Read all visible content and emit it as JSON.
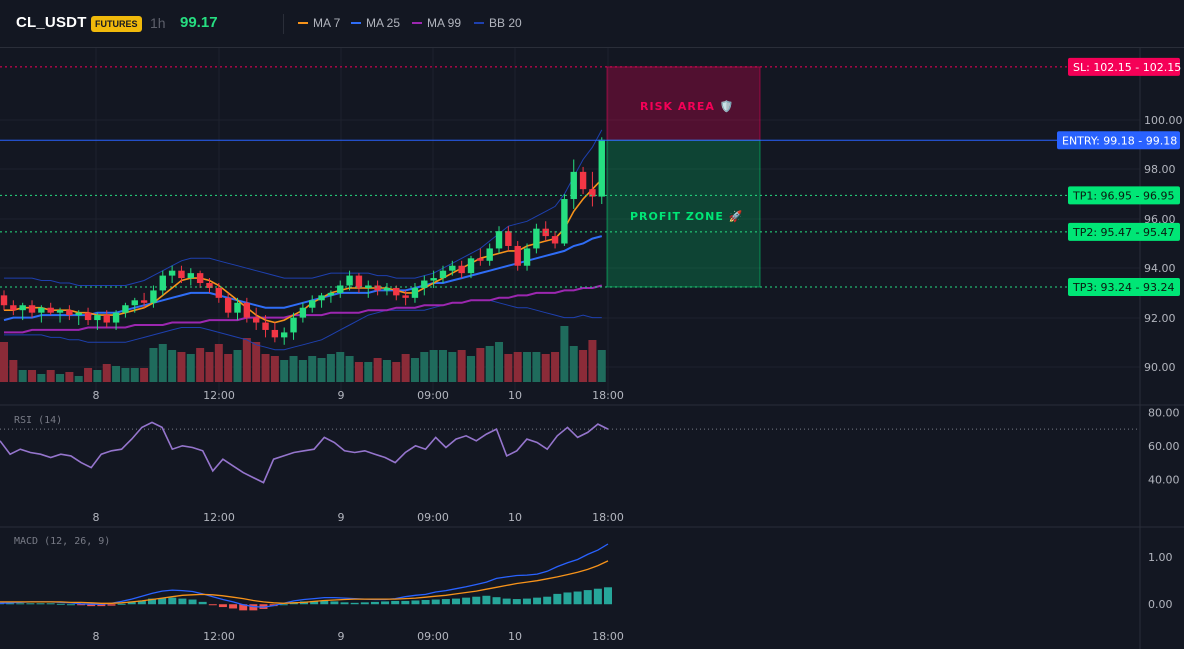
{
  "header": {
    "symbol": "CL_USDT",
    "badge": "FUTURES",
    "timeframe": "1h",
    "last_price": "99.17",
    "indicators": [
      {
        "label": "MA 7",
        "color": "#f7931a"
      },
      {
        "label": "MA 25",
        "color": "#2f6df6"
      },
      {
        "label": "MA 99",
        "color": "#9c27b0"
      },
      {
        "label": "BB 20",
        "color": "#1e40af"
      }
    ]
  },
  "colors": {
    "up": "#26de81",
    "up_volume": "#1f6b5c",
    "down": "#f23645",
    "down_volume": "#8b2b38",
    "risk": "#f50057",
    "profit": "#00e676",
    "entry": "#2962ff",
    "rsi": "#9575cd",
    "macd": "#2962ff",
    "signal": "#f7931a"
  },
  "trade_levels": {
    "sl": {
      "label": "SL: 102.15",
      "value": "102.15"
    },
    "entry": {
      "label": "ENTRY: 99.18",
      "value": "99.18"
    },
    "tp": [
      {
        "label": "TP1: 96.95",
        "value": "96.95"
      },
      {
        "label": "TP2: 95.47",
        "value": "95.47"
      },
      {
        "label": "TP3: 93.24",
        "value": "93.24"
      }
    ],
    "risk_area_label": "RISK AREA 🛡️",
    "profit_zone_label": "PROFIT ZONE 🚀"
  },
  "price_axis": [
    "100.00",
    "98.00",
    "96.00",
    "94.00",
    "92.00",
    "90.00"
  ],
  "rsi_pane": {
    "label": "RSI (14)",
    "axis": [
      "80.00",
      "60.00",
      "40.00"
    ]
  },
  "macd_pane": {
    "label": "MACD (12, 26, 9)",
    "axis": [
      "1.00",
      "0.00"
    ]
  },
  "time_axis": [
    "8",
    "12:00",
    "9",
    "09:00",
    "10",
    "18:00"
  ],
  "chart_data": {
    "type": "candlestick",
    "ylim": [
      89.5,
      102.5
    ],
    "candles": [
      {
        "o": 92.9,
        "h": 93.1,
        "l": 92.3,
        "c": 92.5
      },
      {
        "o": 92.5,
        "h": 92.7,
        "l": 92.1,
        "c": 92.3
      },
      {
        "o": 92.3,
        "h": 92.6,
        "l": 91.9,
        "c": 92.5
      },
      {
        "o": 92.5,
        "h": 92.7,
        "l": 92.0,
        "c": 92.2
      },
      {
        "o": 92.2,
        "h": 92.5,
        "l": 91.8,
        "c": 92.4
      },
      {
        "o": 92.4,
        "h": 92.6,
        "l": 92.1,
        "c": 92.2
      },
      {
        "o": 92.2,
        "h": 92.4,
        "l": 91.8,
        "c": 92.3
      },
      {
        "o": 92.3,
        "h": 92.5,
        "l": 91.9,
        "c": 92.1
      },
      {
        "o": 92.1,
        "h": 92.3,
        "l": 91.7,
        "c": 92.2
      },
      {
        "o": 92.2,
        "h": 92.4,
        "l": 91.7,
        "c": 91.9
      },
      {
        "o": 91.9,
        "h": 92.2,
        "l": 91.5,
        "c": 92.1
      },
      {
        "o": 92.1,
        "h": 92.3,
        "l": 91.6,
        "c": 91.8
      },
      {
        "o": 91.8,
        "h": 92.3,
        "l": 91.5,
        "c": 92.2
      },
      {
        "o": 92.2,
        "h": 92.6,
        "l": 92.0,
        "c": 92.5
      },
      {
        "o": 92.5,
        "h": 92.8,
        "l": 92.2,
        "c": 92.7
      },
      {
        "o": 92.7,
        "h": 93.0,
        "l": 92.4,
        "c": 92.6
      },
      {
        "o": 92.6,
        "h": 93.3,
        "l": 92.4,
        "c": 93.1
      },
      {
        "o": 93.1,
        "h": 93.9,
        "l": 92.9,
        "c": 93.7
      },
      {
        "o": 93.7,
        "h": 94.1,
        "l": 93.4,
        "c": 93.9
      },
      {
        "o": 93.9,
        "h": 94.1,
        "l": 93.4,
        "c": 93.6
      },
      {
        "o": 93.6,
        "h": 94.0,
        "l": 93.3,
        "c": 93.8
      },
      {
        "o": 93.8,
        "h": 93.9,
        "l": 93.2,
        "c": 93.4
      },
      {
        "o": 93.4,
        "h": 93.6,
        "l": 93.0,
        "c": 93.2
      },
      {
        "o": 93.2,
        "h": 93.4,
        "l": 92.6,
        "c": 92.8
      },
      {
        "o": 92.8,
        "h": 93.0,
        "l": 92.0,
        "c": 92.2
      },
      {
        "o": 92.2,
        "h": 92.8,
        "l": 91.9,
        "c": 92.6
      },
      {
        "o": 92.6,
        "h": 92.8,
        "l": 91.8,
        "c": 92.0
      },
      {
        "o": 92.0,
        "h": 92.4,
        "l": 91.5,
        "c": 91.8
      },
      {
        "o": 91.8,
        "h": 92.1,
        "l": 91.2,
        "c": 91.5
      },
      {
        "o": 91.5,
        "h": 91.8,
        "l": 91.0,
        "c": 91.2
      },
      {
        "o": 91.2,
        "h": 91.6,
        "l": 90.9,
        "c": 91.4
      },
      {
        "o": 91.4,
        "h": 92.2,
        "l": 91.1,
        "c": 92.0
      },
      {
        "o": 92.0,
        "h": 92.6,
        "l": 91.8,
        "c": 92.4
      },
      {
        "o": 92.4,
        "h": 92.9,
        "l": 92.2,
        "c": 92.7
      },
      {
        "o": 92.7,
        "h": 93.0,
        "l": 92.4,
        "c": 92.9
      },
      {
        "o": 92.9,
        "h": 93.1,
        "l": 92.6,
        "c": 93.0
      },
      {
        "o": 93.0,
        "h": 93.5,
        "l": 92.8,
        "c": 93.3
      },
      {
        "o": 93.3,
        "h": 93.9,
        "l": 93.1,
        "c": 93.7
      },
      {
        "o": 93.7,
        "h": 93.8,
        "l": 93.0,
        "c": 93.2
      },
      {
        "o": 93.2,
        "h": 93.5,
        "l": 92.8,
        "c": 93.3
      },
      {
        "o": 93.3,
        "h": 93.5,
        "l": 92.9,
        "c": 93.1
      },
      {
        "o": 93.1,
        "h": 93.4,
        "l": 92.9,
        "c": 93.2
      },
      {
        "o": 93.2,
        "h": 93.3,
        "l": 92.7,
        "c": 92.9
      },
      {
        "o": 92.9,
        "h": 93.1,
        "l": 92.5,
        "c": 92.8
      },
      {
        "o": 92.8,
        "h": 93.4,
        "l": 92.6,
        "c": 93.2
      },
      {
        "o": 93.2,
        "h": 93.7,
        "l": 92.9,
        "c": 93.5
      },
      {
        "o": 93.5,
        "h": 93.9,
        "l": 93.2,
        "c": 93.6
      },
      {
        "o": 93.6,
        "h": 94.1,
        "l": 93.4,
        "c": 93.9
      },
      {
        "o": 93.9,
        "h": 94.3,
        "l": 93.7,
        "c": 94.1
      },
      {
        "o": 94.1,
        "h": 94.3,
        "l": 93.6,
        "c": 93.8
      },
      {
        "o": 93.8,
        "h": 94.5,
        "l": 93.6,
        "c": 94.4
      },
      {
        "o": 94.4,
        "h": 94.8,
        "l": 94.1,
        "c": 94.3
      },
      {
        "o": 94.3,
        "h": 95.0,
        "l": 94.1,
        "c": 94.8
      },
      {
        "o": 94.8,
        "h": 95.7,
        "l": 94.6,
        "c": 95.5
      },
      {
        "o": 95.5,
        "h": 95.7,
        "l": 94.7,
        "c": 94.9
      },
      {
        "o": 94.9,
        "h": 95.1,
        "l": 93.9,
        "c": 94.1
      },
      {
        "o": 94.1,
        "h": 95.0,
        "l": 93.9,
        "c": 94.8
      },
      {
        "o": 94.8,
        "h": 95.8,
        "l": 94.6,
        "c": 95.6
      },
      {
        "o": 95.6,
        "h": 95.9,
        "l": 95.1,
        "c": 95.3
      },
      {
        "o": 95.3,
        "h": 95.5,
        "l": 94.8,
        "c": 95.0
      },
      {
        "o": 95.0,
        "h": 97.0,
        "l": 94.9,
        "c": 96.8
      },
      {
        "o": 96.8,
        "h": 98.4,
        "l": 96.4,
        "c": 97.9
      },
      {
        "o": 97.9,
        "h": 98.1,
        "l": 97.0,
        "c": 97.2
      },
      {
        "o": 97.2,
        "h": 97.9,
        "l": 96.5,
        "c": 96.9
      },
      {
        "o": 96.9,
        "h": 99.3,
        "l": 96.6,
        "c": 99.2
      }
    ],
    "volume": [
      40,
      22,
      12,
      12,
      8,
      12,
      8,
      10,
      6,
      14,
      12,
      18,
      16,
      14,
      14,
      14,
      34,
      38,
      32,
      30,
      28,
      34,
      30,
      38,
      28,
      32,
      44,
      40,
      28,
      26,
      22,
      26,
      22,
      26,
      24,
      28,
      30,
      26,
      20,
      20,
      24,
      22,
      20,
      28,
      24,
      30,
      32,
      32,
      30,
      32,
      26,
      34,
      36,
      40,
      28,
      30,
      30,
      30,
      28,
      30,
      56,
      36,
      32,
      42,
      32
    ],
    "ma7": [
      92.3,
      92.3,
      92.4,
      92.4,
      92.4,
      92.3,
      92.3,
      92.3,
      92.2,
      92.2,
      92.1,
      92.1,
      92.1,
      92.2,
      92.3,
      92.4,
      92.6,
      92.9,
      93.2,
      93.5,
      93.6,
      93.6,
      93.5,
      93.3,
      93.0,
      92.7,
      92.4,
      92.1,
      91.9,
      91.8,
      91.9,
      92.1,
      92.3,
      92.6,
      92.8,
      93.0,
      93.1,
      93.2,
      93.2,
      93.2,
      93.2,
      93.2,
      93.1,
      93.0,
      93.0,
      93.2,
      93.4,
      93.6,
      93.8,
      94.0,
      94.2,
      94.4,
      94.5,
      94.6,
      94.7,
      94.7,
      94.9,
      95.0,
      95.1,
      95.2,
      95.6,
      96.3,
      96.8,
      97.2,
      97.6
    ],
    "ma25": [
      91.9,
      92.0,
      92.0,
      92.0,
      92.1,
      92.1,
      92.1,
      92.1,
      92.1,
      92.1,
      92.2,
      92.2,
      92.2,
      92.3,
      92.4,
      92.5,
      92.6,
      92.7,
      92.8,
      92.9,
      93.0,
      93.0,
      93.0,
      92.9,
      92.8,
      92.7,
      92.6,
      92.5,
      92.4,
      92.4,
      92.4,
      92.5,
      92.6,
      92.7,
      92.8,
      92.9,
      93.0,
      93.0,
      93.0,
      93.0,
      93.1,
      93.1,
      93.1,
      93.1,
      93.2,
      93.3,
      93.4,
      93.4,
      93.5,
      93.6,
      93.7,
      93.8,
      93.9,
      94.0,
      94.1,
      94.2,
      94.3,
      94.4,
      94.5,
      94.6,
      94.7,
      94.9,
      95.0,
      95.2,
      95.3
    ],
    "ma99": [
      91.4,
      91.4,
      91.4,
      91.5,
      91.5,
      91.5,
      91.5,
      91.5,
      91.5,
      91.6,
      91.6,
      91.6,
      91.6,
      91.6,
      91.7,
      91.7,
      91.7,
      91.7,
      91.8,
      91.8,
      91.8,
      91.8,
      91.9,
      91.9,
      91.9,
      91.9,
      92.0,
      92.0,
      92.0,
      92.0,
      92.0,
      92.1,
      92.1,
      92.1,
      92.1,
      92.2,
      92.2,
      92.2,
      92.2,
      92.3,
      92.3,
      92.3,
      92.4,
      92.4,
      92.4,
      92.5,
      92.5,
      92.5,
      92.6,
      92.6,
      92.7,
      92.7,
      92.7,
      92.8,
      92.8,
      92.9,
      92.9,
      93.0,
      93.0,
      93.0,
      93.1,
      93.1,
      93.2,
      93.2,
      93.3
    ],
    "bb_upper": [
      93.6,
      93.6,
      93.6,
      93.6,
      93.5,
      93.5,
      93.4,
      93.4,
      93.3,
      93.3,
      93.3,
      93.3,
      93.3,
      93.3,
      93.4,
      93.5,
      93.7,
      93.9,
      94.1,
      94.3,
      94.4,
      94.4,
      94.4,
      94.3,
      94.2,
      94.1,
      94.0,
      93.9,
      93.8,
      93.7,
      93.6,
      93.6,
      93.6,
      93.6,
      93.7,
      93.8,
      93.8,
      93.8,
      93.8,
      93.8,
      93.7,
      93.7,
      93.6,
      93.6,
      93.6,
      93.7,
      93.8,
      94.0,
      94.2,
      94.4,
      94.6,
      94.8,
      95.1,
      95.4,
      95.7,
      95.8,
      95.9,
      96.1,
      96.3,
      96.5,
      97.0,
      97.7,
      98.4,
      98.9,
      99.6
    ],
    "bb_lower": [
      91.3,
      91.3,
      91.3,
      91.3,
      91.3,
      91.2,
      91.2,
      91.1,
      91.1,
      91.0,
      91.0,
      91.0,
      91.0,
      91.0,
      91.1,
      91.2,
      91.3,
      91.4,
      91.5,
      91.6,
      91.6,
      91.6,
      91.5,
      91.4,
      91.3,
      91.2,
      91.1,
      90.9,
      90.8,
      90.7,
      90.7,
      90.8,
      90.9,
      91.0,
      91.1,
      91.3,
      91.5,
      91.7,
      91.9,
      92.1,
      92.2,
      92.3,
      92.3,
      92.3,
      92.3,
      92.3,
      92.4,
      92.5,
      92.6,
      92.6,
      92.7,
      92.7,
      92.7,
      92.6,
      92.5,
      92.4,
      92.4,
      92.3,
      92.2,
      92.1,
      92.0,
      92.0,
      92.1,
      92.0,
      92.0
    ],
    "rsi": [
      63,
      55,
      58,
      56,
      55,
      53,
      55,
      54,
      50,
      47,
      55,
      57,
      58,
      64,
      71,
      74,
      71,
      58,
      60,
      59,
      57,
      45,
      52,
      48,
      44,
      41,
      38,
      52,
      54,
      56,
      57,
      58,
      65,
      62,
      57,
      56,
      57,
      55,
      53,
      50,
      56,
      60,
      58,
      65,
      59,
      64,
      66,
      63,
      67,
      70,
      54,
      57,
      64,
      62,
      58,
      66,
      71,
      65,
      68,
      73,
      70
    ],
    "rsi_ylim": [
      33,
      82
    ],
    "rsi_overbought": 70,
    "macd_ylim": [
      -0.25,
      1.45
    ],
    "macd_line": [
      0.02,
      0.03,
      0.04,
      0.05,
      0.05,
      0.05,
      0.04,
      0.03,
      0.01,
      0.0,
      0.0,
      0.02,
      0.06,
      0.11,
      0.17,
      0.23,
      0.28,
      0.3,
      0.29,
      0.27,
      0.22,
      0.16,
      0.1,
      0.05,
      -0.01,
      -0.05,
      -0.06,
      -0.03,
      0.02,
      0.07,
      0.1,
      0.12,
      0.14,
      0.14,
      0.13,
      0.12,
      0.11,
      0.1,
      0.1,
      0.12,
      0.16,
      0.19,
      0.21,
      0.26,
      0.29,
      0.33,
      0.37,
      0.42,
      0.47,
      0.55,
      0.58,
      0.61,
      0.62,
      0.64,
      0.7,
      0.8,
      0.88,
      0.95,
      1.06,
      1.15,
      1.28
    ],
    "signal_line": [
      0.05,
      0.05,
      0.05,
      0.05,
      0.05,
      0.05,
      0.05,
      0.04,
      0.04,
      0.03,
      0.02,
      0.02,
      0.03,
      0.05,
      0.07,
      0.1,
      0.13,
      0.16,
      0.19,
      0.2,
      0.21,
      0.2,
      0.18,
      0.15,
      0.12,
      0.08,
      0.05,
      0.03,
      0.02,
      0.03,
      0.04,
      0.06,
      0.08,
      0.09,
      0.1,
      0.11,
      0.11,
      0.11,
      0.11,
      0.11,
      0.12,
      0.13,
      0.15,
      0.17,
      0.19,
      0.22,
      0.25,
      0.28,
      0.32,
      0.36,
      0.4,
      0.44,
      0.47,
      0.5,
      0.54,
      0.58,
      0.63,
      0.68,
      0.74,
      0.82,
      0.92
    ],
    "histogram": [
      0.03,
      0.02,
      0.02,
      0.02,
      0.02,
      0.02,
      0.01,
      0.0,
      -0.02,
      -0.04,
      -0.04,
      -0.03,
      0.01,
      0.05,
      0.08,
      0.12,
      0.13,
      0.14,
      0.12,
      0.1,
      0.05,
      -0.02,
      -0.06,
      -0.09,
      -0.13,
      -0.13,
      -0.1,
      -0.04,
      0.0,
      0.04,
      0.06,
      0.07,
      0.07,
      0.06,
      0.04,
      0.03,
      0.04,
      0.05,
      0.06,
      0.07,
      0.07,
      0.08,
      0.09,
      0.1,
      0.11,
      0.12,
      0.14,
      0.16,
      0.18,
      0.15,
      0.12,
      0.11,
      0.12,
      0.14,
      0.16,
      0.22,
      0.25,
      0.27,
      0.3,
      0.33,
      0.36
    ]
  }
}
